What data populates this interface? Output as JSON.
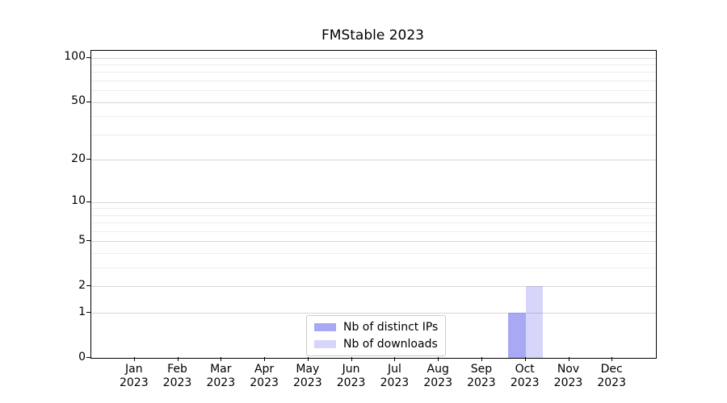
{
  "chart_data": {
    "type": "bar",
    "title": "FMStable 2023",
    "categories": [
      "Jan 2023",
      "Feb 2023",
      "Mar 2023",
      "Apr 2023",
      "May 2023",
      "Jun 2023",
      "Jul 2023",
      "Aug 2023",
      "Sep 2023",
      "Oct 2023",
      "Nov 2023",
      "Dec 2023"
    ],
    "series": [
      {
        "name": "Nb of distinct IPs",
        "color": "rgba(102,102,238,0.57)",
        "values": [
          0,
          0,
          0,
          0,
          0,
          0,
          0,
          0,
          0,
          1,
          0,
          0
        ]
      },
      {
        "name": "Nb of downloads",
        "color": "rgba(102,102,238,0.27)",
        "values": [
          0,
          0,
          0,
          0,
          0,
          0,
          0,
          0,
          0,
          2,
          0,
          0
        ]
      }
    ],
    "xlabel": "",
    "ylabel": "",
    "yscale": "log1p",
    "ylim": [
      0,
      112
    ],
    "yticks": [
      0,
      1,
      2,
      5,
      10,
      20,
      50,
      100
    ],
    "minor_yticks": [
      3,
      4,
      6,
      7,
      8,
      9,
      30,
      40,
      60,
      70,
      80,
      90
    ],
    "grid": "horizontal-on",
    "legend_position": "lower center"
  }
}
